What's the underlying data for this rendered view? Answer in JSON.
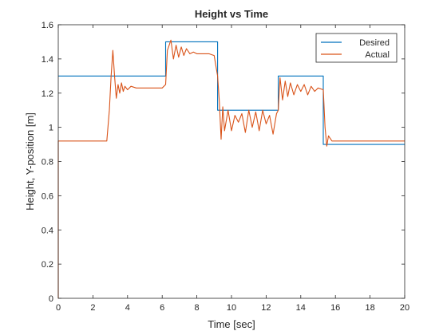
{
  "chart_data": {
    "type": "line",
    "title": "Height vs Time",
    "xlabel": "Time [sec]",
    "ylabel": "Height, Y-position [m]",
    "xlim": [
      0,
      20
    ],
    "ylim": [
      0,
      1.6
    ],
    "xticks": [
      0,
      2,
      4,
      6,
      8,
      10,
      12,
      14,
      16,
      18,
      20
    ],
    "yticks": [
      0,
      0.2,
      0.4,
      0.6,
      0.8,
      1,
      1.2,
      1.4,
      1.6
    ],
    "grid": false,
    "legend_position": "top-right",
    "series": [
      {
        "name": "Desired",
        "color": "#0072BD",
        "x": [
          0,
          6.2,
          6.2,
          9.2,
          9.2,
          12.7,
          12.7,
          15.3,
          15.3,
          20
        ],
        "y": [
          1.3,
          1.3,
          1.5,
          1.5,
          1.1,
          1.1,
          1.3,
          1.3,
          0.9,
          0.9
        ]
      },
      {
        "name": "Actual",
        "color": "#D95319",
        "x": [
          0,
          0,
          2.8,
          2.95,
          3.05,
          3.15,
          3.25,
          3.35,
          3.45,
          3.55,
          3.65,
          3.75,
          3.85,
          4.0,
          4.2,
          4.5,
          5.0,
          5.5,
          6.0,
          6.2,
          6.3,
          6.5,
          6.65,
          6.8,
          6.95,
          7.1,
          7.25,
          7.4,
          7.6,
          7.8,
          8.0,
          8.3,
          8.7,
          9.0,
          9.2,
          9.3,
          9.4,
          9.5,
          9.6,
          9.8,
          10.0,
          10.2,
          10.4,
          10.6,
          10.8,
          11.0,
          11.2,
          11.4,
          11.6,
          11.8,
          12.0,
          12.2,
          12.4,
          12.6,
          12.7,
          12.8,
          12.95,
          13.1,
          13.25,
          13.4,
          13.6,
          13.8,
          14.0,
          14.2,
          14.4,
          14.6,
          14.8,
          15.0,
          15.3,
          15.4,
          15.5,
          15.6,
          15.8,
          16.0,
          17.0,
          18.0,
          19.0,
          20.0
        ],
        "y": [
          0,
          0.92,
          0.92,
          1.1,
          1.3,
          1.45,
          1.3,
          1.17,
          1.25,
          1.2,
          1.26,
          1.21,
          1.24,
          1.22,
          1.24,
          1.23,
          1.23,
          1.23,
          1.23,
          1.25,
          1.45,
          1.51,
          1.4,
          1.48,
          1.41,
          1.47,
          1.42,
          1.46,
          1.43,
          1.44,
          1.43,
          1.43,
          1.43,
          1.42,
          1.3,
          1.15,
          0.93,
          1.12,
          0.98,
          1.1,
          0.98,
          1.07,
          1.03,
          1.08,
          0.97,
          1.1,
          1.0,
          1.09,
          0.98,
          1.1,
          1.02,
          1.07,
          0.96,
          1.08,
          1.1,
          1.29,
          1.16,
          1.27,
          1.18,
          1.26,
          1.19,
          1.25,
          1.21,
          1.25,
          1.19,
          1.24,
          1.21,
          1.23,
          1.22,
          1.0,
          0.89,
          0.95,
          0.92,
          0.92,
          0.92,
          0.92,
          0.92,
          0.92
        ]
      }
    ]
  }
}
